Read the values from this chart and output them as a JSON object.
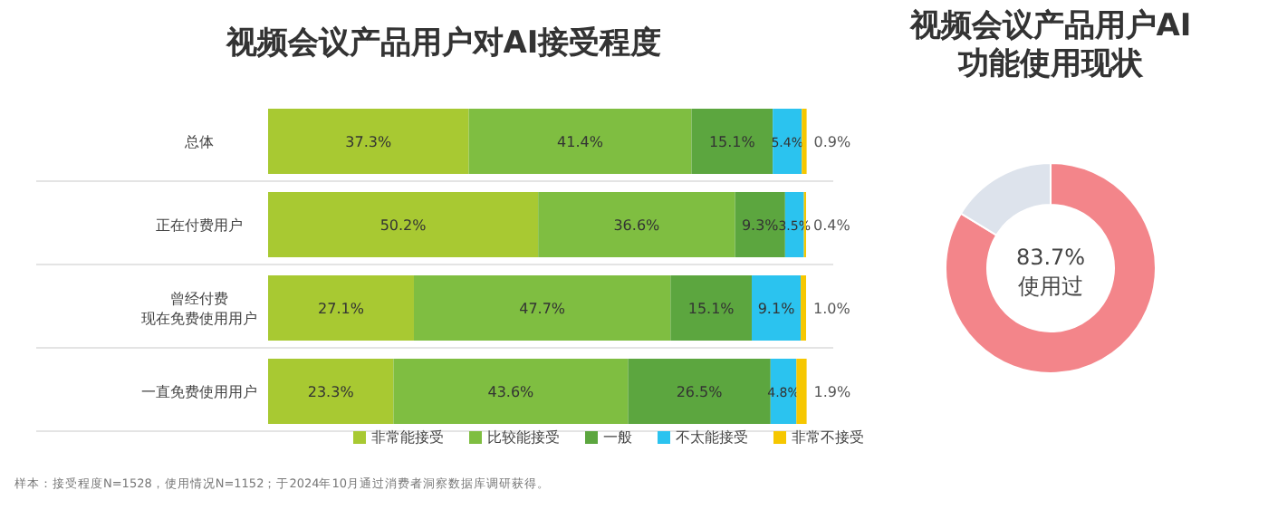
{
  "chart_data": [
    {
      "type": "bar",
      "title": "视频会议产品用户对AI接受程度",
      "orientation": "horizontal",
      "stacked": true,
      "legend": "bottom",
      "categories": [
        "总体",
        "正在付费用户",
        "曾经付费现在免费使用用户",
        "一直免费使用用户"
      ],
      "series": [
        {
          "name": "非常能接受",
          "color": "#a8c932",
          "values": [
            37.3,
            50.2,
            27.1,
            23.3
          ],
          "value_labels": [
            "37.3%",
            "50.2%",
            "27.1%",
            "23.3%"
          ]
        },
        {
          "name": "比较能接受",
          "color": "#7fbe41",
          "values": [
            41.4,
            36.6,
            47.7,
            43.6
          ],
          "value_labels": [
            "41.4%",
            "36.6%",
            "47.7%",
            "43.6%"
          ]
        },
        {
          "name": "一般",
          "color": "#5ca63f",
          "values": [
            15.1,
            9.3,
            15.1,
            26.5
          ],
          "value_labels": [
            "15.1%",
            "9.3%",
            "15.1%",
            "26.5%"
          ]
        },
        {
          "name": "不太能接受",
          "color": "#2bc3ef",
          "values": [
            5.4,
            3.5,
            9.1,
            4.8
          ],
          "value_labels": [
            "5.4%",
            "3.5%",
            "9.1%",
            "4.8%"
          ]
        },
        {
          "name": "非常不接受",
          "color": "#f6c700",
          "values": [
            0.9,
            0.4,
            1.0,
            1.9
          ],
          "value_labels": [
            "0.9%",
            "0.4%",
            "1.0%",
            "1.9%"
          ]
        }
      ],
      "annotations": [
        "样本：接受程度N=1528，使用情况N=1152；于2024年10月通过消费者洞察数据库调研获得。"
      ]
    },
    {
      "type": "donut",
      "title": "视频会议产品用户AI\n功能使用现状",
      "categories": [
        "使用过",
        null
      ],
      "values": [
        83.7,
        16.3
      ],
      "colors": [
        "#f3858a",
        "#dde3ec"
      ],
      "value_labels": [
        "83.7%",
        null
      ]
    }
  ]
}
